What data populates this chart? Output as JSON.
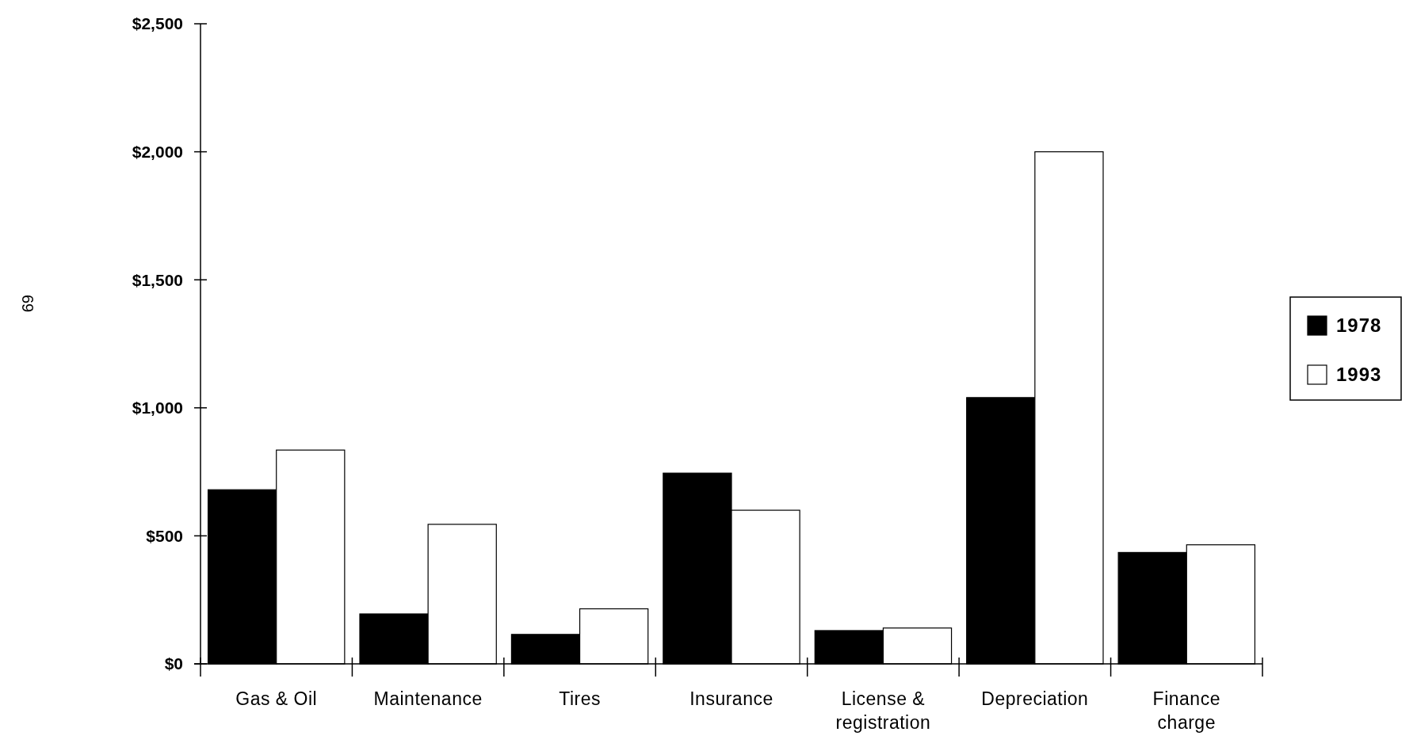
{
  "chart_data": {
    "type": "bar",
    "categories": [
      "Gas & Oil",
      "Maintenance",
      "Tires",
      "Insurance",
      "License & registration",
      "Depreciation",
      "Finance charge"
    ],
    "series": [
      {
        "name": "1978",
        "color": "#000000",
        "values": [
          680,
          195,
          115,
          745,
          130,
          1040,
          435
        ]
      },
      {
        "name": "1993",
        "color": "#ffffff",
        "values": [
          835,
          545,
          215,
          600,
          140,
          2000,
          465
        ]
      }
    ],
    "ylim": [
      0,
      2500
    ],
    "yticks": [
      {
        "value": 0,
        "label": "$0"
      },
      {
        "value": 500,
        "label": "$500"
      },
      {
        "value": 1000,
        "label": "$1,000"
      },
      {
        "value": 1500,
        "label": "$1,500"
      },
      {
        "value": 2000,
        "label": "$2,000"
      },
      {
        "value": 2500,
        "label": "$2,500"
      }
    ],
    "legend": "right",
    "annotations": [
      "69"
    ]
  }
}
